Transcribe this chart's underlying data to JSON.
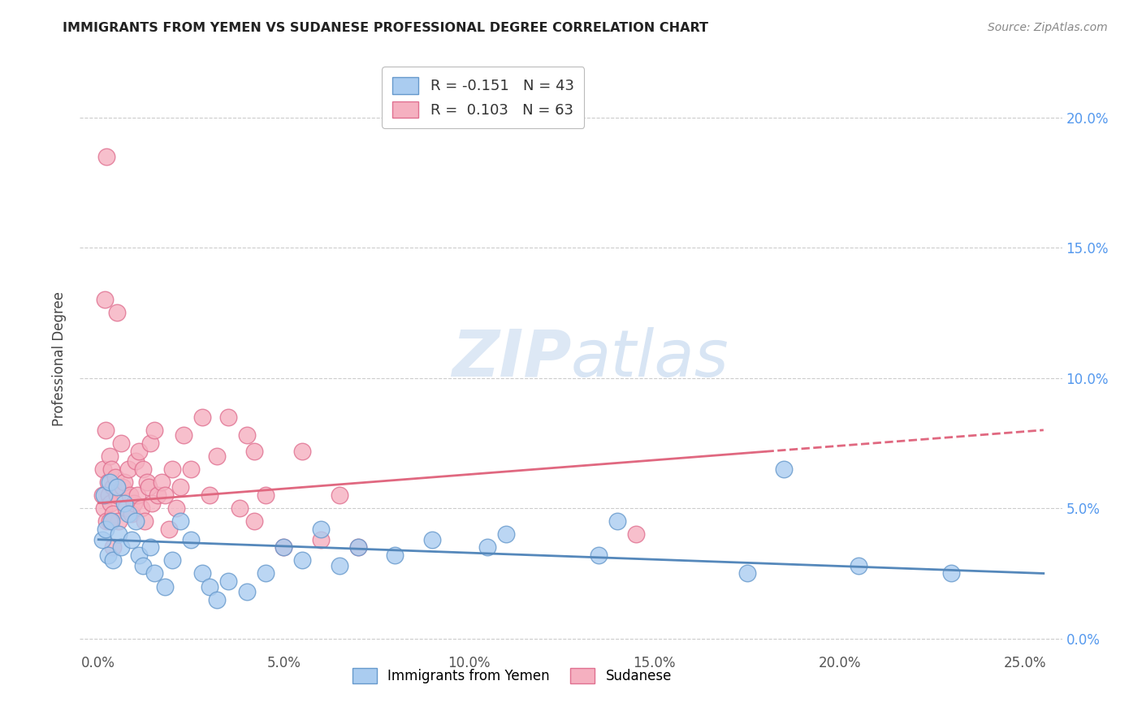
{
  "title": "IMMIGRANTS FROM YEMEN VS SUDANESE PROFESSIONAL DEGREE CORRELATION CHART",
  "source": "Source: ZipAtlas.com",
  "ylabel": "Professional Degree",
  "x_tick_values": [
    0.0,
    5.0,
    10.0,
    15.0,
    20.0,
    25.0
  ],
  "y_tick_values": [
    0.0,
    5.0,
    10.0,
    15.0,
    20.0
  ],
  "xlim": [
    -0.5,
    26.0
  ],
  "ylim": [
    -0.5,
    22.0
  ],
  "blue_color": "#aaccf0",
  "pink_color": "#f5b0c0",
  "blue_edge_color": "#6699cc",
  "pink_edge_color": "#e07090",
  "blue_line_color": "#5588bb",
  "pink_line_color": "#e06880",
  "right_tick_color": "#5599ee",
  "background_color": "#ffffff",
  "grid_color": "#cccccc",
  "watermark_color": "#dde8f5",
  "yemen_points": [
    [
      0.1,
      3.8
    ],
    [
      0.15,
      5.5
    ],
    [
      0.2,
      4.2
    ],
    [
      0.25,
      3.2
    ],
    [
      0.3,
      6.0
    ],
    [
      0.35,
      4.5
    ],
    [
      0.4,
      3.0
    ],
    [
      0.5,
      5.8
    ],
    [
      0.55,
      4.0
    ],
    [
      0.6,
      3.5
    ],
    [
      0.7,
      5.2
    ],
    [
      0.8,
      4.8
    ],
    [
      0.9,
      3.8
    ],
    [
      1.0,
      4.5
    ],
    [
      1.1,
      3.2
    ],
    [
      1.2,
      2.8
    ],
    [
      1.4,
      3.5
    ],
    [
      1.5,
      2.5
    ],
    [
      1.8,
      2.0
    ],
    [
      2.0,
      3.0
    ],
    [
      2.2,
      4.5
    ],
    [
      2.5,
      3.8
    ],
    [
      2.8,
      2.5
    ],
    [
      3.0,
      2.0
    ],
    [
      3.2,
      1.5
    ],
    [
      3.5,
      2.2
    ],
    [
      4.0,
      1.8
    ],
    [
      4.5,
      2.5
    ],
    [
      5.0,
      3.5
    ],
    [
      5.5,
      3.0
    ],
    [
      6.0,
      4.2
    ],
    [
      6.5,
      2.8
    ],
    [
      7.0,
      3.5
    ],
    [
      8.0,
      3.2
    ],
    [
      9.0,
      3.8
    ],
    [
      10.5,
      3.5
    ],
    [
      11.0,
      4.0
    ],
    [
      13.5,
      3.2
    ],
    [
      14.0,
      4.5
    ],
    [
      17.5,
      2.5
    ],
    [
      18.5,
      6.5
    ],
    [
      20.5,
      2.8
    ],
    [
      23.0,
      2.5
    ]
  ],
  "sudanese_points": [
    [
      0.1,
      5.5
    ],
    [
      0.12,
      6.5
    ],
    [
      0.15,
      5.0
    ],
    [
      0.2,
      8.0
    ],
    [
      0.22,
      4.5
    ],
    [
      0.25,
      6.0
    ],
    [
      0.28,
      5.5
    ],
    [
      0.3,
      7.0
    ],
    [
      0.32,
      5.2
    ],
    [
      0.35,
      6.5
    ],
    [
      0.38,
      4.8
    ],
    [
      0.4,
      5.8
    ],
    [
      0.45,
      6.2
    ],
    [
      0.5,
      5.5
    ],
    [
      0.55,
      4.5
    ],
    [
      0.6,
      7.5
    ],
    [
      0.65,
      5.8
    ],
    [
      0.7,
      6.0
    ],
    [
      0.75,
      5.0
    ],
    [
      0.8,
      6.5
    ],
    [
      0.85,
      5.5
    ],
    [
      0.9,
      4.8
    ],
    [
      0.95,
      5.2
    ],
    [
      1.0,
      6.8
    ],
    [
      1.05,
      5.5
    ],
    [
      1.1,
      7.2
    ],
    [
      1.15,
      5.0
    ],
    [
      1.2,
      6.5
    ],
    [
      1.25,
      4.5
    ],
    [
      1.3,
      6.0
    ],
    [
      1.35,
      5.8
    ],
    [
      1.4,
      7.5
    ],
    [
      1.45,
      5.2
    ],
    [
      1.5,
      8.0
    ],
    [
      1.6,
      5.5
    ],
    [
      1.7,
      6.0
    ],
    [
      1.8,
      5.5
    ],
    [
      1.9,
      4.2
    ],
    [
      2.0,
      6.5
    ],
    [
      2.1,
      5.0
    ],
    [
      2.2,
      5.8
    ],
    [
      2.3,
      7.8
    ],
    [
      2.5,
      6.5
    ],
    [
      2.8,
      8.5
    ],
    [
      3.0,
      5.5
    ],
    [
      3.2,
      7.0
    ],
    [
      3.5,
      8.5
    ],
    [
      3.8,
      5.0
    ],
    [
      4.0,
      7.8
    ],
    [
      4.2,
      7.2
    ],
    [
      4.5,
      5.5
    ],
    [
      5.0,
      3.5
    ],
    [
      5.5,
      7.2
    ],
    [
      6.0,
      3.8
    ],
    [
      6.5,
      5.5
    ],
    [
      0.18,
      13.0
    ],
    [
      0.22,
      18.5
    ],
    [
      0.5,
      12.5
    ],
    [
      4.2,
      4.5
    ],
    [
      7.0,
      3.5
    ],
    [
      14.5,
      4.0
    ],
    [
      0.3,
      4.5
    ],
    [
      0.4,
      3.5
    ]
  ],
  "blue_line_x0": 0.0,
  "blue_line_y0": 3.8,
  "blue_line_x1": 25.5,
  "blue_line_y1": 2.5,
  "pink_line_x0": 0.0,
  "pink_line_y0": 5.2,
  "pink_line_x1": 25.5,
  "pink_line_y1": 8.0,
  "pink_solid_end_x": 18.0,
  "legend_r1": "R = -0.151",
  "legend_n1": "N = 43",
  "legend_r2": "R =  0.103",
  "legend_n2": "N = 63",
  "legend_label1": "Immigrants from Yemen",
  "legend_label2": "Sudanese"
}
